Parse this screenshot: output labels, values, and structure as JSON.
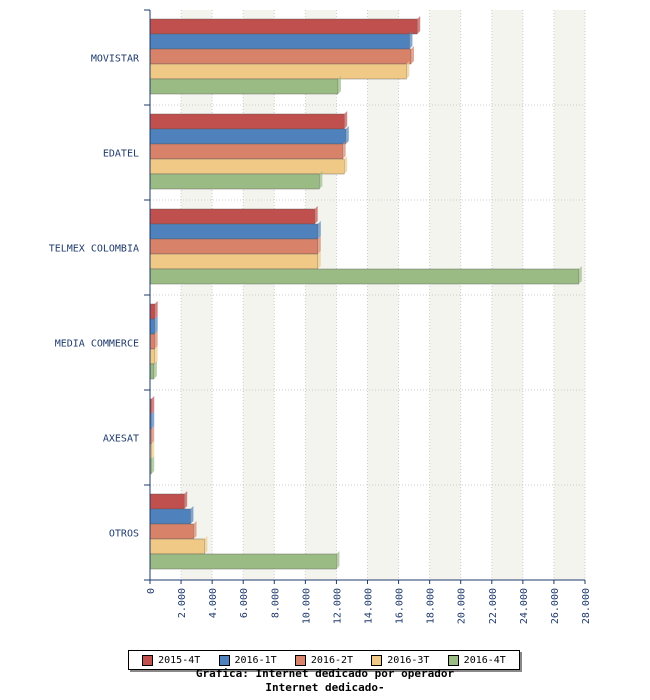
{
  "chart_data": {
    "type": "bar",
    "orientation": "horizontal",
    "categories": [
      "MOVISTAR",
      "EDATEL",
      "TELMEX COLOMBIA",
      "MEDIA COMMERCE",
      "AXESAT",
      "OTROS"
    ],
    "series": [
      {
        "name": "2015-4T",
        "color": "#c0504d",
        "values": [
          17200,
          12500,
          10600,
          300,
          80,
          2200
        ]
      },
      {
        "name": "2016-1T",
        "color": "#4f81bd",
        "values": [
          16700,
          12600,
          10800,
          300,
          80,
          2600
        ]
      },
      {
        "name": "2016-2T",
        "color": "#d9826a",
        "values": [
          16800,
          12400,
          10800,
          300,
          80,
          2800
        ]
      },
      {
        "name": "2016-3T",
        "color": "#f0c987",
        "values": [
          16500,
          12500,
          10800,
          300,
          80,
          3500
        ]
      },
      {
        "name": "2016-4T",
        "color": "#9bbb84",
        "values": [
          12100,
          10900,
          27600,
          250,
          80,
          12000
        ]
      }
    ],
    "xlim": [
      0,
      28000
    ],
    "xticks": [
      "0",
      "2.000",
      "4.000",
      "6.000",
      "8.000",
      "10.000",
      "12.000",
      "14.000",
      "16.000",
      "18.000",
      "20.000",
      "22.000",
      "24.000",
      "26.000",
      "28.000"
    ],
    "grid": true,
    "legend_position": "bottom"
  },
  "caption": {
    "line1": "Grafica: Internet dedicado por operador",
    "line2": "Internet dedicado-"
  }
}
